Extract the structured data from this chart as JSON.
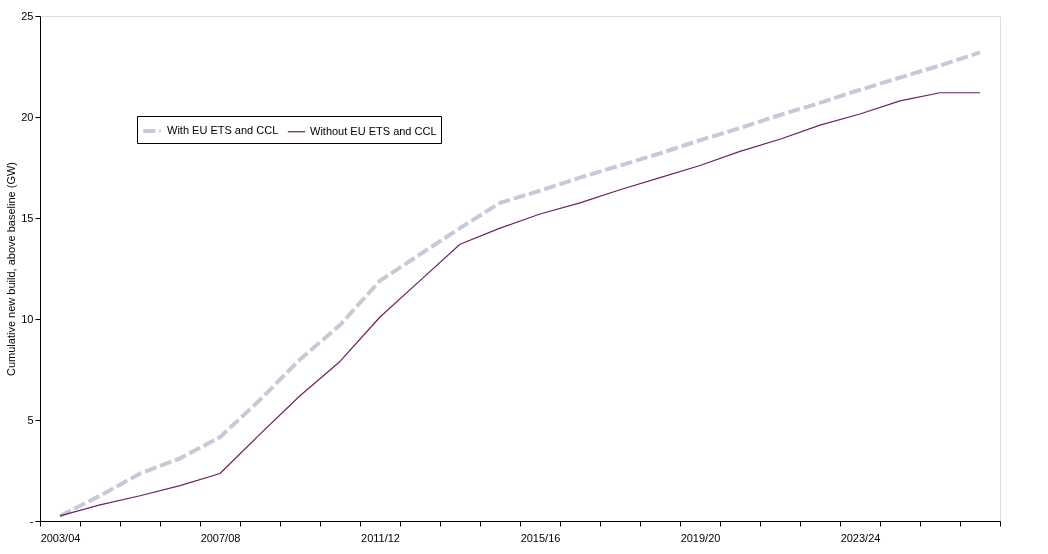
{
  "chart_data": {
    "type": "line",
    "ylabel": "Cumulative new build, above baseline (GW)",
    "categories": [
      "2003/04",
      null,
      null,
      null,
      "2007/08",
      null,
      null,
      null,
      "2011/12",
      null,
      null,
      null,
      "2015/16",
      null,
      null,
      null,
      "2019/20",
      null,
      null,
      null,
      "2023/24",
      null,
      null,
      null
    ],
    "series": [
      {
        "name": "With EU ETS and CCL",
        "color": "#c5cad6",
        "line_style": "dashed",
        "values": [
          0.25,
          1.25,
          2.35,
          3.1,
          4.15,
          6.0,
          8.0,
          9.7,
          11.9,
          13.2,
          14.5,
          15.75,
          16.35,
          17.0,
          17.6,
          18.2,
          18.85,
          19.45,
          20.1,
          20.7,
          21.35,
          21.95,
          22.55,
          23.2
        ]
      },
      {
        "name": "Without EU ETS and CCL",
        "color": "#6b2163",
        "line_style": "solid",
        "values": [
          0.25,
          0.8,
          1.25,
          1.75,
          2.35,
          4.3,
          6.2,
          7.9,
          10.1,
          11.9,
          13.7,
          14.5,
          15.2,
          15.75,
          16.4,
          17.0,
          17.6,
          18.3,
          18.9,
          19.6,
          20.15,
          20.8,
          21.2,
          21.2
        ]
      }
    ],
    "ylim": [
      0,
      25
    ],
    "yticks": [
      {
        "value": 0,
        "label": "-"
      },
      5,
      10,
      15,
      20,
      25
    ],
    "grid": false,
    "legend": "top left",
    "marker": "none"
  }
}
